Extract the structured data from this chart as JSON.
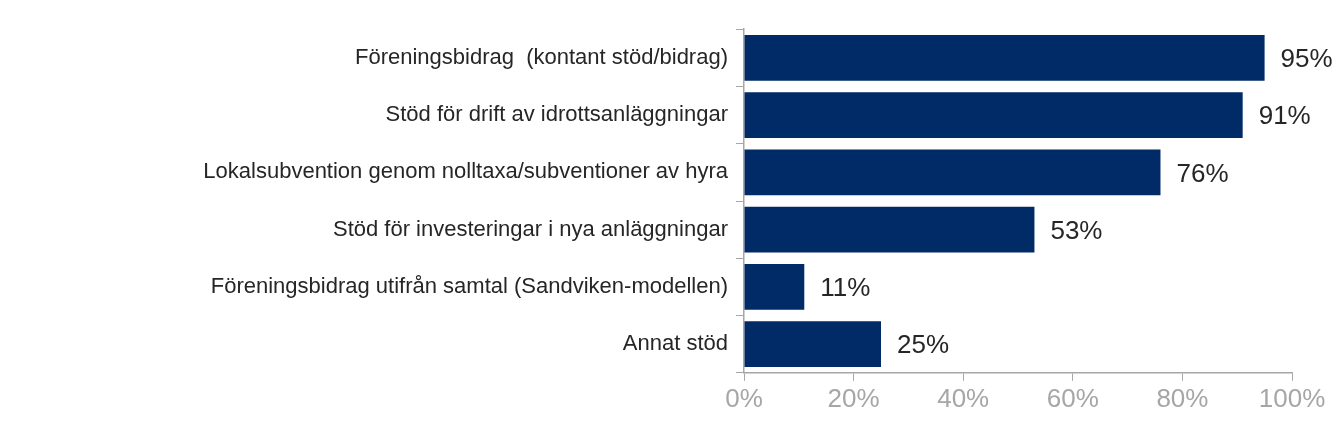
{
  "chart_data": {
    "type": "bar",
    "orientation": "horizontal",
    "categories": [
      "Föreningsbidrag  (kontant stöd/bidrag)",
      "Stöd för drift av idrottsanläggningar",
      "Lokalsubvention genom nolltaxa/subventioner av hyra",
      "Stöd för investeringar i nya anläggningar",
      "Föreningsbidrag utifrån samtal (Sandviken-modellen)",
      "Annat stöd"
    ],
    "values": [
      95,
      91,
      76,
      53,
      11,
      25
    ],
    "value_labels": [
      "95%",
      "91%",
      "76%",
      "53%",
      "11%",
      "25%"
    ],
    "color": "#002b66",
    "xlim": [
      0,
      100
    ],
    "xticks": [
      {
        "value": 0,
        "label": "0%"
      },
      {
        "value": 20,
        "label": "20%"
      },
      {
        "value": 40,
        "label": "40%"
      },
      {
        "value": 60,
        "label": "60%"
      },
      {
        "value": 80,
        "label": "80%"
      },
      {
        "value": 100,
        "label": "100%"
      }
    ],
    "grid": false,
    "legend": false
  }
}
